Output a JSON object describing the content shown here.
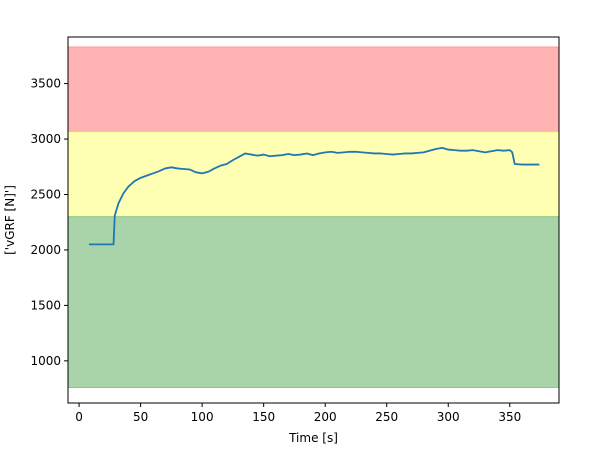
{
  "chart_data": {
    "type": "line",
    "title": "",
    "xlabel": "Time [s]",
    "ylabel": "['vGRF [N]']",
    "xlim": [
      -9,
      390
    ],
    "ylim": [
      620,
      3920
    ],
    "x_ticks": [
      0,
      50,
      100,
      150,
      200,
      250,
      300,
      350
    ],
    "y_ticks": [
      1000,
      1500,
      2000,
      2500,
      3000,
      3500
    ],
    "grid": false,
    "bands": [
      {
        "zone": "red",
        "y0": 3060,
        "y1": 3830,
        "color": "#ff9999"
      },
      {
        "zone": "yellow",
        "y0": 2300,
        "y1": 3060,
        "color": "#ffff99"
      },
      {
        "zone": "green",
        "y0": 760,
        "y1": 2300,
        "color": "#8cc68c"
      }
    ],
    "series": [
      {
        "color": "#1f77b4",
        "points": [
          [
            8,
            2050
          ],
          [
            28,
            2050
          ],
          [
            29,
            2310
          ],
          [
            32,
            2420
          ],
          [
            36,
            2510
          ],
          [
            40,
            2570
          ],
          [
            45,
            2620
          ],
          [
            50,
            2650
          ],
          [
            55,
            2670
          ],
          [
            60,
            2690
          ],
          [
            65,
            2710
          ],
          [
            70,
            2735
          ],
          [
            75,
            2745
          ],
          [
            80,
            2735
          ],
          [
            85,
            2730
          ],
          [
            90,
            2725
          ],
          [
            95,
            2700
          ],
          [
            100,
            2690
          ],
          [
            105,
            2705
          ],
          [
            110,
            2735
          ],
          [
            115,
            2760
          ],
          [
            120,
            2775
          ],
          [
            125,
            2810
          ],
          [
            130,
            2840
          ],
          [
            135,
            2870
          ],
          [
            140,
            2860
          ],
          [
            145,
            2850
          ],
          [
            150,
            2860
          ],
          [
            155,
            2845
          ],
          [
            160,
            2850
          ],
          [
            165,
            2855
          ],
          [
            170,
            2865
          ],
          [
            175,
            2855
          ],
          [
            180,
            2860
          ],
          [
            185,
            2870
          ],
          [
            190,
            2855
          ],
          [
            195,
            2870
          ],
          [
            200,
            2880
          ],
          [
            205,
            2885
          ],
          [
            210,
            2875
          ],
          [
            215,
            2880
          ],
          [
            220,
            2885
          ],
          [
            225,
            2885
          ],
          [
            230,
            2880
          ],
          [
            235,
            2875
          ],
          [
            240,
            2870
          ],
          [
            245,
            2870
          ],
          [
            250,
            2865
          ],
          [
            255,
            2860
          ],
          [
            260,
            2865
          ],
          [
            265,
            2870
          ],
          [
            270,
            2870
          ],
          [
            275,
            2875
          ],
          [
            280,
            2880
          ],
          [
            285,
            2895
          ],
          [
            290,
            2910
          ],
          [
            295,
            2920
          ],
          [
            300,
            2905
          ],
          [
            305,
            2900
          ],
          [
            310,
            2895
          ],
          [
            315,
            2895
          ],
          [
            320,
            2900
          ],
          [
            325,
            2890
          ],
          [
            330,
            2880
          ],
          [
            335,
            2890
          ],
          [
            340,
            2900
          ],
          [
            345,
            2895
          ],
          [
            350,
            2900
          ],
          [
            352,
            2880
          ],
          [
            354,
            2775
          ],
          [
            360,
            2770
          ],
          [
            374,
            2770
          ]
        ]
      }
    ]
  }
}
